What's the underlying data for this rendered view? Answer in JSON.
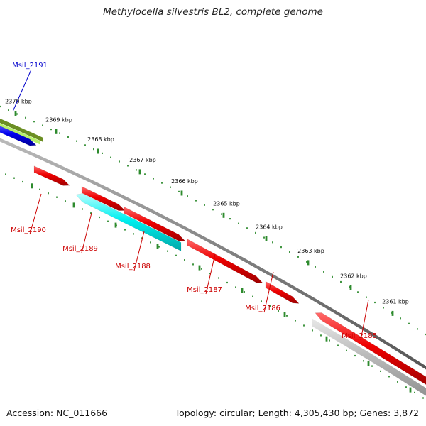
{
  "title": "Methylocella silvestris BL2, complete genome",
  "footer": {
    "accession": "Accession: NC_011666",
    "summary": "Topology: circular; Length: 4,305,430 bp; Genes: 3,872"
  },
  "colors": {
    "backbone": "#888888",
    "tick": "#2e8b2e",
    "gene_red": "#ee0000",
    "gene_blue": "#0000ee",
    "gene_cyan": "#00f0f0",
    "gene_olive": "#6b8e23",
    "gene_lightgreen": "#b6f06a",
    "gene_gray": "#bbbbbb",
    "label_red": "#cc0000",
    "label_blue": "#0000cc"
  },
  "ruler": {
    "unit": "kbp",
    "ticks": [
      {
        "label": "2370 kbp"
      },
      {
        "label": "2369 kbp"
      },
      {
        "label": "2368 kbp"
      },
      {
        "label": "2367 kbp"
      },
      {
        "label": "2366 kbp"
      },
      {
        "label": "2365 kbp"
      },
      {
        "label": "2364 kbp"
      },
      {
        "label": "2363 kbp"
      },
      {
        "label": "2362 kbp"
      },
      {
        "label": "2361 kbp"
      }
    ]
  },
  "genes": [
    {
      "name": "Msil_2191",
      "strand": "forward",
      "color": "blue"
    },
    {
      "name": "Msil_2190",
      "strand": "reverse",
      "color": "red"
    },
    {
      "name": "Msil_2189",
      "strand": "reverse",
      "color": "red"
    },
    {
      "name": "Msil_2188",
      "strand": "reverse",
      "color": "cyan"
    },
    {
      "name": "Msil_2187",
      "strand": "reverse",
      "color": "red"
    },
    {
      "name": "Msil_2186",
      "strand": "reverse",
      "color": "red"
    },
    {
      "name": "Msil_2185",
      "strand": "reverse",
      "color": "red"
    }
  ]
}
